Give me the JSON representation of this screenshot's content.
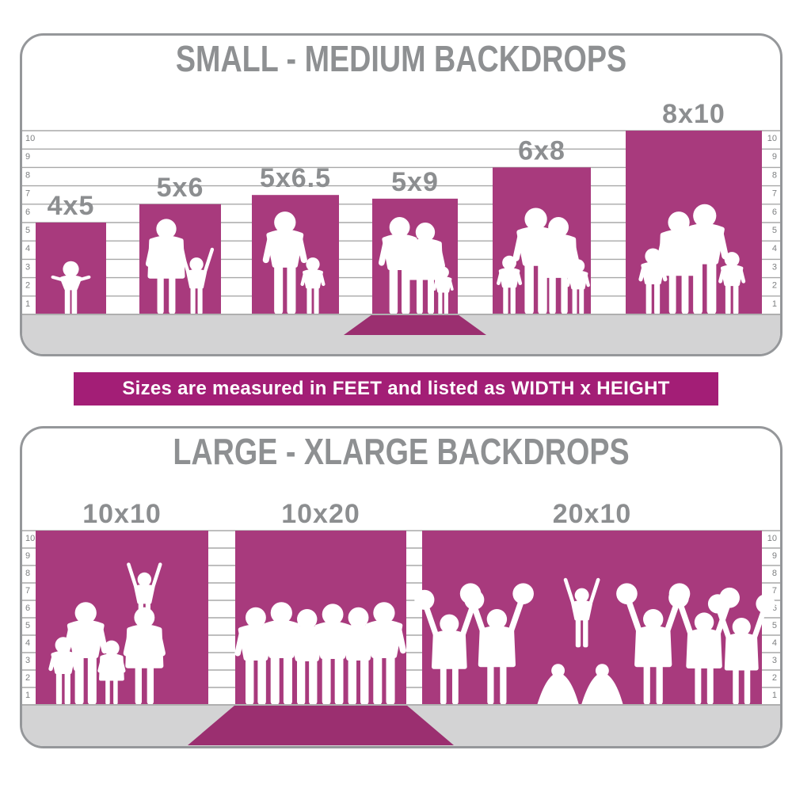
{
  "colors": {
    "backdrop_magenta": "#A83A7D",
    "sweep_magenta": "#9B2F70",
    "banner_magenta": "#A31E76",
    "title_gray": "#8E9092",
    "label_gray": "#8C8E90",
    "ruler_gray": "#7E8082",
    "grid_gray": "#A8A8A8",
    "floor_gray": "#D3D3D4",
    "floor_edge_gray": "#AFAFAF",
    "border_gray": "#95979A",
    "silhouette_white": "#FFFFFF"
  },
  "banner": {
    "text": "Sizes are measured in FEET and listed as WIDTH x HEIGHT"
  },
  "chart_data": [
    {
      "type": "bar",
      "title": "SMALL - MEDIUM BACKDROPS",
      "unit": "feet",
      "note": "sizes listed as WIDTH x HEIGHT",
      "ylim": [
        0,
        10
      ],
      "yticks": [
        1,
        2,
        3,
        4,
        5,
        6,
        7,
        8,
        9,
        10
      ],
      "ruler_sides": [
        "left",
        "right"
      ],
      "categories": [
        "4x5",
        "5x6",
        "5x6.5",
        "5x9",
        "6x8",
        "8x10"
      ],
      "widths_ft": [
        4,
        5,
        5,
        5,
        6,
        8
      ],
      "heights_ft": [
        5,
        6,
        6.5,
        9,
        8,
        10
      ],
      "displayed_wall_heights_ft": [
        5,
        6,
        6.5,
        6.3,
        8,
        10
      ],
      "floor_sweep": [
        false,
        false,
        false,
        true,
        false,
        false
      ],
      "figures": [
        [
          {
            "t": "toddler",
            "h": 2.9,
            "o": 0
          }
        ],
        [
          {
            "t": "woman",
            "h": 5.2,
            "o": -0.17
          },
          {
            "t": "child-up",
            "h": 3.1,
            "o": 0.2
          }
        ],
        [
          {
            "t": "man",
            "h": 5.6,
            "o": -0.12
          },
          {
            "t": "child",
            "h": 3.1,
            "o": 0.2
          }
        ],
        [
          {
            "t": "man",
            "h": 5.3,
            "o": -0.18
          },
          {
            "t": "woman",
            "h": 5.0,
            "o": 0.12
          },
          {
            "t": "child",
            "h": 2.6,
            "o": 0.33
          }
        ],
        [
          {
            "t": "child",
            "h": 3.2,
            "o": -0.33
          },
          {
            "t": "man",
            "h": 5.8,
            "o": -0.06
          },
          {
            "t": "woman",
            "h": 5.3,
            "o": 0.17
          },
          {
            "t": "child",
            "h": 3.0,
            "o": 0.37
          }
        ],
        [
          {
            "t": "child",
            "h": 3.6,
            "o": -0.3
          },
          {
            "t": "woman",
            "h": 5.6,
            "o": -0.11
          },
          {
            "t": "man",
            "h": 6.0,
            "o": 0.08
          },
          {
            "t": "child",
            "h": 3.4,
            "o": 0.28
          }
        ]
      ]
    },
    {
      "type": "bar",
      "title": "LARGE - XLARGE BACKDROPS",
      "unit": "feet",
      "note": "sizes listed as WIDTH x HEIGHT",
      "ylim": [
        0,
        10
      ],
      "yticks": [
        1,
        2,
        3,
        4,
        5,
        6,
        7,
        8,
        9,
        10
      ],
      "ruler_sides": [
        "left",
        "right"
      ],
      "categories": [
        "10x10",
        "10x20",
        "20x10"
      ],
      "widths_ft": [
        10,
        10,
        20
      ],
      "heights_ft": [
        10,
        20,
        10
      ],
      "displayed_wall_heights_ft": [
        10,
        10,
        10
      ],
      "floor_sweep": [
        false,
        true,
        false
      ],
      "figures": [
        [
          {
            "t": "child",
            "h": 3.9,
            "o": -0.34
          },
          {
            "t": "man",
            "h": 5.9,
            "o": -0.21
          },
          {
            "t": "girl",
            "h": 3.7,
            "o": -0.06
          },
          {
            "t": "woman",
            "h": 5.6,
            "o": 0.13
          },
          {
            "t": "up",
            "h": 3.3,
            "o": 0.13,
            "base": 4.3
          }
        ],
        [
          {
            "t": "man",
            "h": 5.6,
            "o": -0.38
          },
          {
            "t": "man",
            "h": 5.9,
            "o": -0.23
          },
          {
            "t": "man",
            "h": 5.5,
            "o": -0.08
          },
          {
            "t": "man",
            "h": 5.8,
            "o": 0.07
          },
          {
            "t": "man",
            "h": 5.6,
            "o": 0.22
          },
          {
            "t": "man",
            "h": 5.9,
            "o": 0.37
          }
        ],
        [
          {
            "t": "cheer",
            "h": 5.2,
            "o": -0.42
          },
          {
            "t": "cheer",
            "h": 5.5,
            "o": -0.28
          },
          {
            "t": "crouch",
            "h": 2.4,
            "o": -0.1
          },
          {
            "t": "crouch",
            "h": 2.4,
            "o": 0.03
          },
          {
            "t": "up",
            "h": 3.4,
            "o": -0.03,
            "base": 3.3
          },
          {
            "t": "cheer",
            "h": 5.5,
            "o": 0.18
          },
          {
            "t": "cheer",
            "h": 5.3,
            "o": 0.33
          },
          {
            "t": "cheer",
            "h": 5.0,
            "o": 0.44
          }
        ]
      ]
    }
  ]
}
